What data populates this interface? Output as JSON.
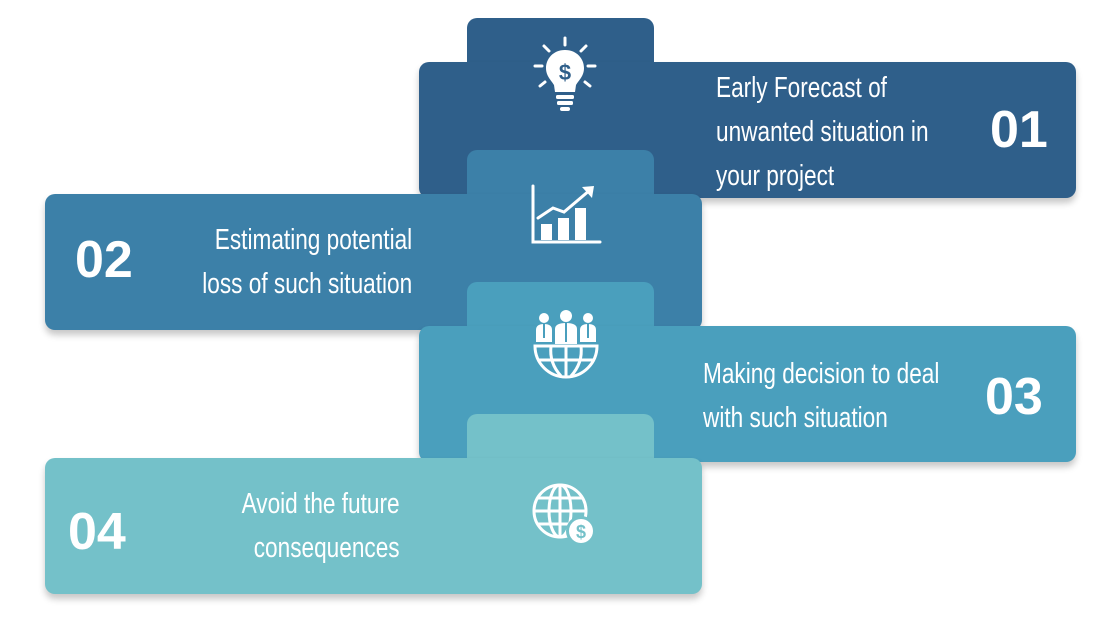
{
  "steps": [
    {
      "number": "01",
      "lines": [
        "Early Forecast of",
        "unwanted situation in",
        "your project"
      ],
      "icon": "lightbulb-dollar-icon",
      "color": "#2f5f8a"
    },
    {
      "number": "02",
      "lines": [
        "Estimating potential",
        "loss of such situation"
      ],
      "icon": "growth-chart-icon",
      "color": "#3c80a8"
    },
    {
      "number": "03",
      "lines": [
        "Making decision to deal",
        "with such situation"
      ],
      "icon": "team-globe-icon",
      "color": "#4a9fbd"
    },
    {
      "number": "04",
      "lines": [
        "Avoid the future",
        "consequences"
      ],
      "icon": "globe-dollar-icon",
      "color": "#74c1c9"
    }
  ]
}
